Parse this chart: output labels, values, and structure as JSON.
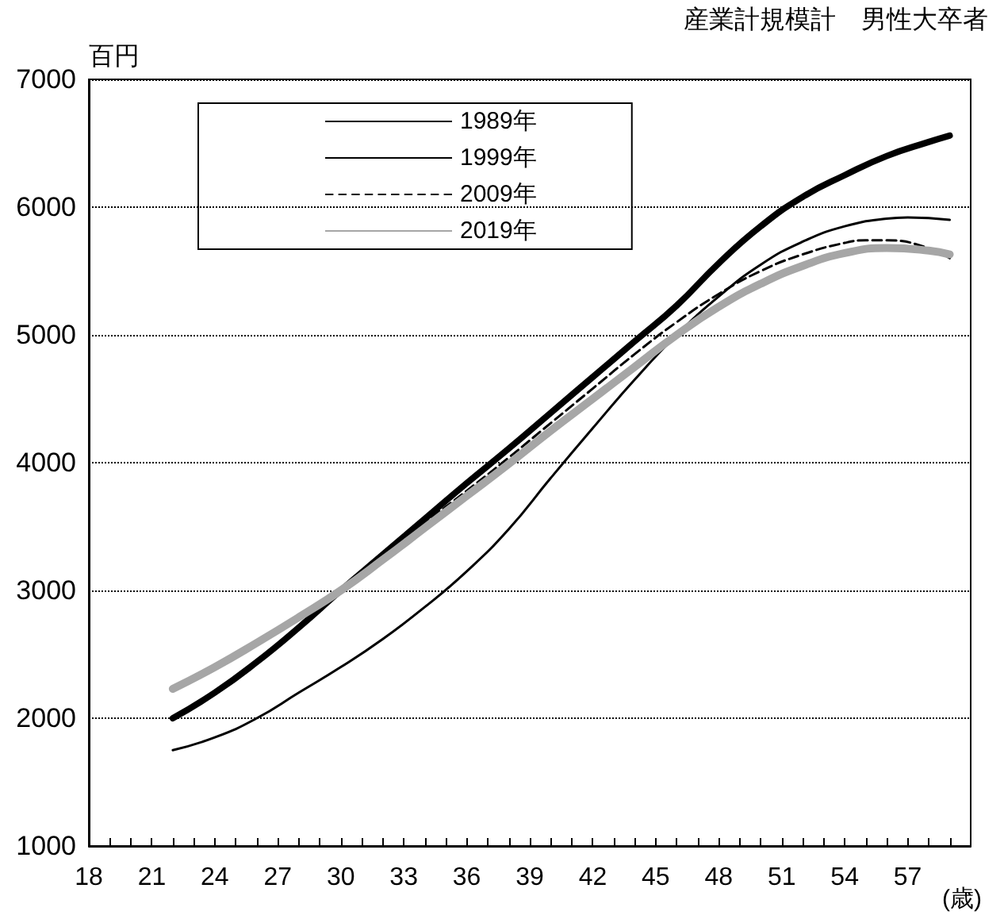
{
  "chart_data": {
    "type": "line",
    "title": "産業計規模計　男性大卒者",
    "ylabel": "百円",
    "xlabel": "(歳)",
    "xlim": [
      18,
      60
    ],
    "xticks": [
      18,
      {
        "value": 19,
        "label": null
      },
      {
        "value": 20,
        "label": null
      },
      21,
      {
        "value": 22,
        "label": null
      },
      {
        "value": 23,
        "label": null
      },
      24,
      {
        "value": 25,
        "label": null
      },
      {
        "value": 26,
        "label": null
      },
      27,
      {
        "value": 28,
        "label": null
      },
      {
        "value": 29,
        "label": null
      },
      30,
      {
        "value": 31,
        "label": null
      },
      {
        "value": 32,
        "label": null
      },
      33,
      {
        "value": 34,
        "label": null
      },
      {
        "value": 35,
        "label": null
      },
      36,
      {
        "value": 37,
        "label": null
      },
      {
        "value": 38,
        "label": null
      },
      39,
      {
        "value": 40,
        "label": null
      },
      {
        "value": 41,
        "label": null
      },
      42,
      {
        "value": 43,
        "label": null
      },
      {
        "value": 44,
        "label": null
      },
      45,
      {
        "value": 46,
        "label": null
      },
      {
        "value": 47,
        "label": null
      },
      48,
      {
        "value": 49,
        "label": null
      },
      {
        "value": 50,
        "label": null
      },
      51,
      {
        "value": 52,
        "label": null
      },
      {
        "value": 53,
        "label": null
      },
      54,
      {
        "value": 55,
        "label": null
      },
      {
        "value": 56,
        "label": null
      },
      57,
      {
        "value": 58,
        "label": null
      },
      {
        "value": 59,
        "label": null
      }
    ],
    "ylim": [
      1000,
      7000
    ],
    "yticks": [
      1000,
      2000,
      3000,
      4000,
      5000,
      6000,
      7000
    ],
    "grid": "y",
    "legend": "top left",
    "marker": "none",
    "series": [
      {
        "name": "1989年",
        "color": "#000000",
        "line_style": "solid",
        "x": [
          22,
          24,
          26,
          28,
          30,
          32,
          34,
          36,
          38,
          40,
          42,
          44,
          46,
          48,
          50,
          52,
          54,
          56,
          57,
          59
        ],
        "values": [
          1750,
          1850,
          2000,
          2200,
          2400,
          2620,
          2870,
          3150,
          3480,
          3880,
          4270,
          4650,
          5000,
          5300,
          5550,
          5730,
          5850,
          5910,
          5920,
          5900
        ]
      },
      {
        "name": "1999年",
        "color": "#000000",
        "line_style": "solid",
        "x": [
          22,
          24,
          26,
          28,
          30,
          32,
          34,
          36,
          38,
          40,
          42,
          44,
          46,
          48,
          50,
          52,
          54,
          56,
          58,
          59
        ],
        "values": [
          2000,
          2200,
          2440,
          2710,
          3000,
          3280,
          3560,
          3840,
          4110,
          4390,
          4670,
          4950,
          5230,
          5560,
          5850,
          6080,
          6250,
          6400,
          6510,
          6560
        ]
      },
      {
        "name": "2009年",
        "color": "#000000",
        "line_style": "dashed",
        "x": [
          22,
          24,
          26,
          28,
          30,
          32,
          34,
          36,
          38,
          40,
          42,
          44,
          46,
          48,
          50,
          52,
          54,
          55,
          56,
          58,
          59
        ],
        "values": [
          2000,
          2200,
          2440,
          2710,
          3000,
          3270,
          3530,
          3780,
          4040,
          4310,
          4580,
          4850,
          5100,
          5320,
          5500,
          5630,
          5720,
          5740,
          5740,
          5680,
          5600
        ]
      },
      {
        "name": "2019年",
        "color": "#a6a6a6",
        "line_style": "solid",
        "x": [
          22,
          24,
          26,
          28,
          30,
          32,
          34,
          36,
          38,
          40,
          42,
          44,
          46,
          48,
          50,
          52,
          54,
          56,
          58,
          59
        ],
        "values": [
          2230,
          2400,
          2590,
          2790,
          3000,
          3240,
          3490,
          3740,
          3990,
          4250,
          4500,
          4750,
          5000,
          5220,
          5400,
          5540,
          5640,
          5680,
          5660,
          5630
        ]
      }
    ]
  }
}
